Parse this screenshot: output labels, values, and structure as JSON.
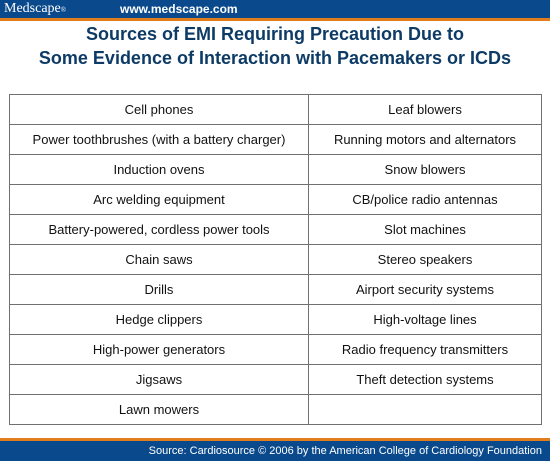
{
  "header": {
    "logo": "Medscape",
    "logo_mark": "®",
    "site": "www.medscape.com"
  },
  "title": {
    "line1": "Sources of EMI Requiring Precaution Due to",
    "line2": "Some Evidence of Interaction with Pacemakers or ICDs"
  },
  "table": {
    "rows": [
      [
        "Cell phones",
        "Leaf blowers"
      ],
      [
        "Power toothbrushes (with a battery charger)",
        "Running motors and alternators"
      ],
      [
        "Induction ovens",
        "Snow blowers"
      ],
      [
        "Arc welding equipment",
        "CB/police radio antennas"
      ],
      [
        "Battery-powered, cordless power tools",
        "Slot machines"
      ],
      [
        "Chain saws",
        "Stereo speakers"
      ],
      [
        "Drills",
        "Airport security systems"
      ],
      [
        "Hedge clippers",
        "High-voltage lines"
      ],
      [
        "High-power generators",
        "Radio frequency transmitters"
      ],
      [
        "Jigsaws",
        "Theft detection systems"
      ],
      [
        "Lawn mowers",
        ""
      ]
    ]
  },
  "footer": {
    "source": "Source: Cardiosource © 2006 by the American College of Cardiology Foundation"
  },
  "colors": {
    "brand_blue": "#0a4a8c",
    "accent_orange": "#e27d1e",
    "title_blue": "#0d3b66"
  }
}
